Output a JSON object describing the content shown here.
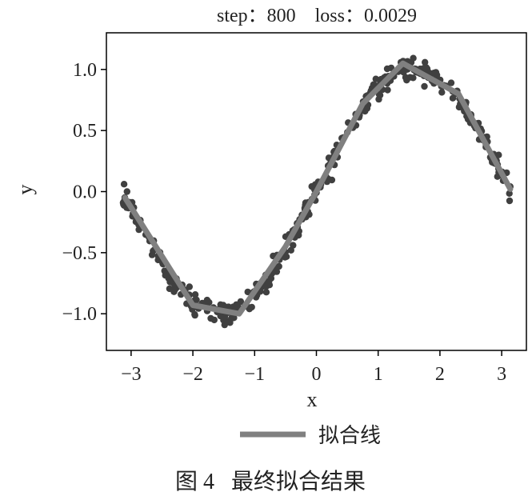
{
  "chart_data": {
    "type": "scatter",
    "title": "step：800    loss：0.0029",
    "xlabel": "x",
    "ylabel": "y",
    "xlim": [
      -3.4,
      3.4
    ],
    "ylim": [
      -1.3,
      1.3
    ],
    "xticks": [
      -3,
      -2,
      -1,
      0,
      1,
      2,
      3
    ],
    "xtick_labels": [
      "−3",
      "−2",
      "−1",
      "0",
      "1",
      "2",
      "3"
    ],
    "yticks": [
      -1.0,
      -0.5,
      0.0,
      0.5,
      1.0
    ],
    "ytick_labels": [
      "−1.0",
      "−0.5",
      "0.0",
      "0.5",
      "1.0"
    ],
    "grid": false,
    "legend_position": "bottom-center",
    "scatter_series": {
      "relation": "y = sin(x) + noise",
      "x_range": [
        -3.1416,
        3.1416
      ],
      "n_points": 400,
      "noise_std": 0.05,
      "color": "#404040"
    },
    "fit_series": {
      "name": "拟合线",
      "color": "#808080",
      "x": [
        -3.1,
        -2.0,
        -1.25,
        -0.5,
        0.0,
        0.75,
        1.4,
        2.3,
        3.14
      ],
      "y": [
        -0.05,
        -0.93,
        -1.0,
        -0.45,
        0.0,
        0.72,
        1.05,
        0.8,
        0.02
      ]
    }
  },
  "caption": "图 4   最终拟合结果",
  "colors": {
    "points": "#404040",
    "fit_line": "#808080",
    "axes": "#000000",
    "text": "#222222"
  }
}
